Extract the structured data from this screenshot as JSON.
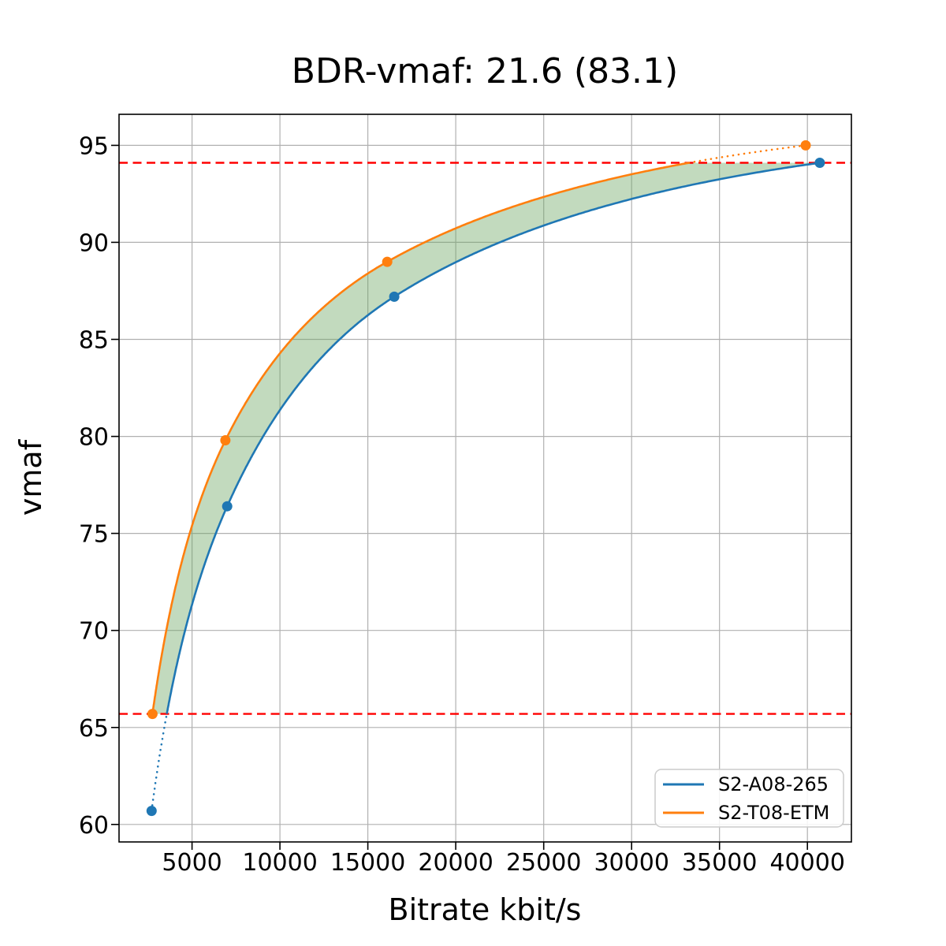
{
  "title": "BDR-vmaf: 21.6 (83.1)",
  "axes": {
    "xlabel": "Bitrate kbit/s",
    "ylabel": "vmaf"
  },
  "legend": {
    "position": "lower-right",
    "entries": [
      {
        "label": "S2-A08-265",
        "color": "#1f77b4"
      },
      {
        "label": "S2-T08-ETM",
        "color": "#ff7f0e"
      }
    ]
  },
  "chart_data": {
    "type": "line",
    "title": "BDR-vmaf: 21.6 (83.1)",
    "xlabel": "Bitrate kbit/s",
    "ylabel": "vmaf",
    "xlim": [
      850,
      42500
    ],
    "ylim": [
      59.1,
      96.6
    ],
    "xticks": [
      5000,
      10000,
      15000,
      20000,
      25000,
      30000,
      35000,
      40000
    ],
    "yticks": [
      60,
      65,
      70,
      75,
      80,
      85,
      90,
      95
    ],
    "grid": true,
    "grid_color": "#b0b0b0",
    "series": [
      {
        "name": "S2-A08-265",
        "color": "#1f77b4",
        "marker": "circle",
        "x": [
          2700,
          7000,
          16500,
          40700
        ],
        "y": [
          60.7,
          76.4,
          87.2,
          94.1
        ]
      },
      {
        "name": "S2-T08-ETM",
        "color": "#ff7f0e",
        "marker": "circle",
        "x": [
          2750,
          6900,
          16100,
          39900
        ],
        "y": [
          65.7,
          79.8,
          89.0,
          95.0
        ]
      }
    ],
    "reference_lines": [
      {
        "y": 94.1,
        "color": "#ff0000",
        "style": "dashed"
      },
      {
        "y": 65.7,
        "color": "#ff0000",
        "style": "dashed"
      }
    ],
    "overlap_interval_vmaf": [
      65.7,
      94.1
    ],
    "fill_between": {
      "color": "#6ea865",
      "opacity": 0.42
    },
    "interpolation": "pchip-log-x",
    "solid_within_overlap": true
  }
}
